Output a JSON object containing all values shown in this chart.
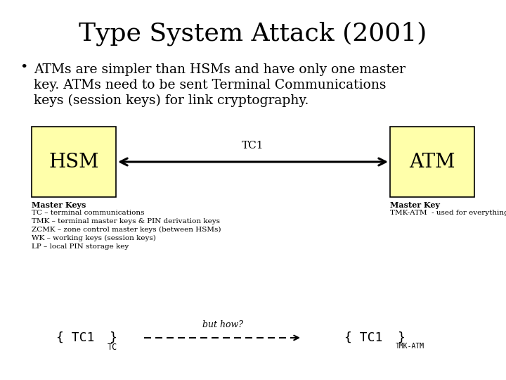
{
  "title": "Type System Attack (2001)",
  "title_fontsize": 26,
  "bg_color": "#ffffff",
  "bullet_text_line1": "ATMs are simpler than HSMs and have only one master",
  "bullet_text_line2": "key. ATMs need to be sent Terminal Communications",
  "bullet_text_line3": "keys (session keys) for link cryptography.",
  "bullet_fontsize": 13.5,
  "hsm_label": "HSM",
  "atm_label": "ATM",
  "box_color": "#ffffaa",
  "box_edge_color": "#000000",
  "arrow_label": "TC1",
  "master_keys_bold": "Master Keys",
  "master_keys_lines": [
    "TC – terminal communications",
    "TMK – terminal master keys & PIN derivation keys",
    "ZCMK – zone control master keys (between HSMs)",
    "WK – working keys (session keys)",
    "LP – local PIN storage key"
  ],
  "master_key_bold": "Master Key",
  "master_key_lines": [
    "TMK-ATM  - used for everything"
  ],
  "bottom_mid_label": "but how?",
  "mono_fontsize": 13,
  "small_fontsize": 7.5,
  "note_fontsize": 8
}
